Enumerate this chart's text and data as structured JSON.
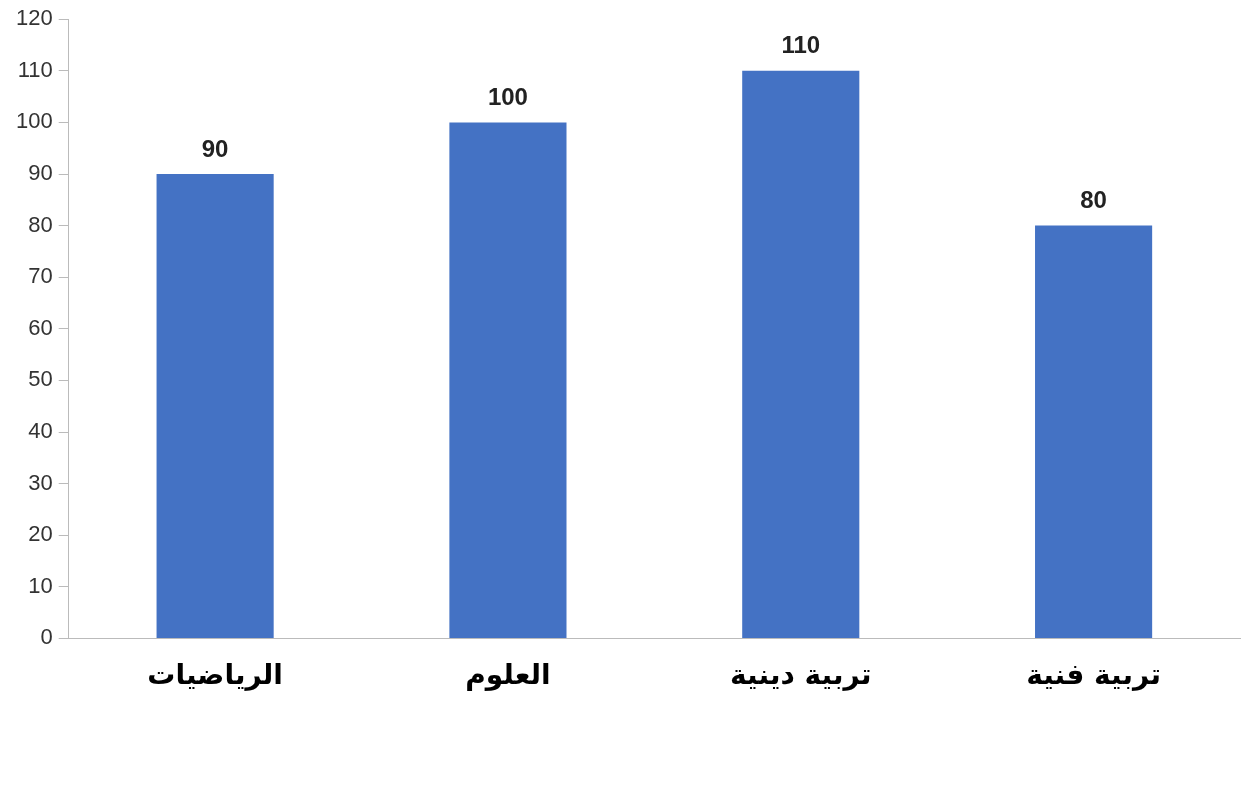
{
  "chart_data": {
    "type": "bar",
    "categories": [
      "الرياضيات",
      "العلوم",
      "تربية دينية",
      "تربية فنية"
    ],
    "values": [
      90,
      100,
      110,
      80
    ],
    "color": "#4472c4",
    "ylim": [
      0,
      120
    ],
    "yticks": [
      0,
      10,
      20,
      30,
      40,
      50,
      60,
      70,
      80,
      90,
      100,
      110,
      120
    ],
    "grid": false,
    "legend": false,
    "data_labels": true
  }
}
